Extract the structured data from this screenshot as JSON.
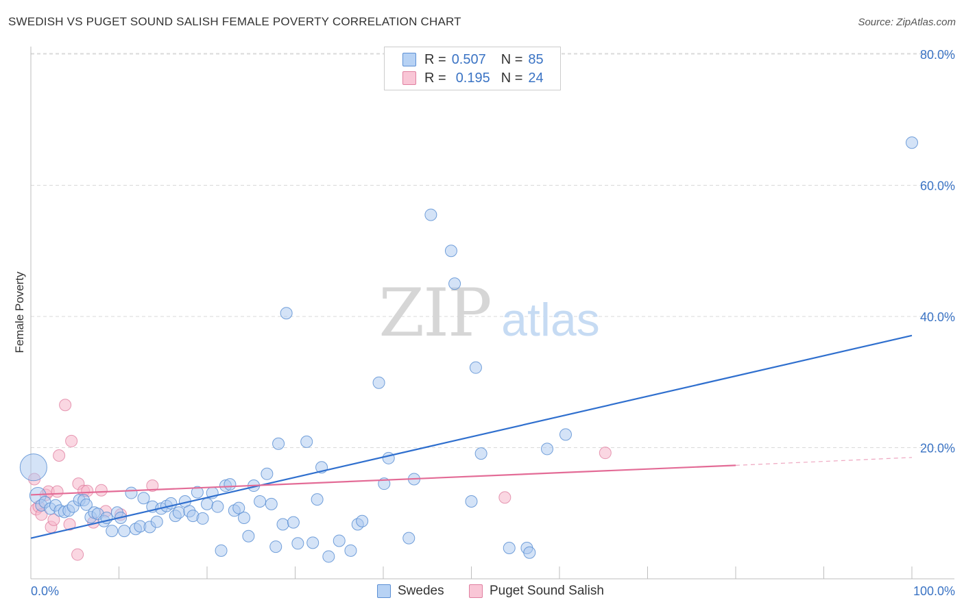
{
  "header": {
    "title": "SWEDISH VS PUGET SOUND SALISH FEMALE POVERTY CORRELATION CHART",
    "source": "Source: ZipAtlas.com"
  },
  "watermark": {
    "zip": "ZIP",
    "atlas": "atlas"
  },
  "legend": {
    "rows": [
      {
        "r_label": "R =",
        "r_value": "0.507",
        "n_label": "N =",
        "n_value": "85"
      },
      {
        "r_label": "R =",
        "r_value": "0.195",
        "n_label": "N =",
        "n_value": "24"
      }
    ]
  },
  "bottom_legend": {
    "series1": "Swedes",
    "series2": "Puget Sound Salish"
  },
  "colors": {
    "blue_fill": "#a9c8f0",
    "blue_stroke": "#5b8fd4",
    "blue_line": "#2f6fce",
    "pink_fill": "#f5b6cb",
    "pink_stroke": "#e07fa0",
    "pink_line": "#e36b96",
    "tick_label": "#3a73c4",
    "grid": "#d9d9d9"
  },
  "chart_data": {
    "type": "scatter",
    "title": "SWEDISH VS PUGET SOUND SALISH FEMALE POVERTY CORRELATION CHART",
    "xlabel": "",
    "ylabel": "Female Poverty",
    "xlim": [
      0,
      100
    ],
    "ylim": [
      0,
      82
    ],
    "x_tick_labels": [
      "0.0%",
      "100.0%"
    ],
    "y_ticks": [
      20,
      40,
      60,
      80
    ],
    "y_tick_labels": [
      "20.0%",
      "40.0%",
      "60.0%",
      "80.0%"
    ],
    "grid": true,
    "legend_position": "top-center",
    "series": [
      {
        "name": "Swedes",
        "r": 0.507,
        "n": 85,
        "trend": {
          "x": [
            0,
            100
          ],
          "y": [
            6.2,
            37.1
          ]
        },
        "points": [
          [
            0.3,
            17.0
          ],
          [
            0.8,
            12.7
          ],
          [
            1.2,
            11.2
          ],
          [
            1.6,
            11.7
          ],
          [
            2.2,
            10.7
          ],
          [
            2.8,
            11.2
          ],
          [
            3.3,
            10.4
          ],
          [
            3.8,
            10.2
          ],
          [
            4.3,
            10.4
          ],
          [
            4.8,
            11.0
          ],
          [
            5.5,
            12.0
          ],
          [
            6.0,
            12.0
          ],
          [
            6.3,
            11.3
          ],
          [
            6.8,
            9.4
          ],
          [
            7.2,
            10.1
          ],
          [
            7.6,
            9.9
          ],
          [
            8.3,
            8.8
          ],
          [
            8.6,
            9.3
          ],
          [
            9.2,
            7.3
          ],
          [
            9.8,
            10.1
          ],
          [
            10.2,
            9.3
          ],
          [
            10.6,
            7.3
          ],
          [
            11.4,
            13.1
          ],
          [
            11.9,
            7.6
          ],
          [
            12.4,
            8.0
          ],
          [
            12.8,
            12.3
          ],
          [
            13.5,
            7.9
          ],
          [
            13.8,
            11.0
          ],
          [
            14.3,
            8.7
          ],
          [
            14.8,
            10.7
          ],
          [
            15.4,
            11.1
          ],
          [
            15.9,
            11.5
          ],
          [
            16.4,
            9.6
          ],
          [
            16.8,
            10.1
          ],
          [
            17.5,
            11.8
          ],
          [
            18.0,
            10.3
          ],
          [
            18.4,
            9.6
          ],
          [
            18.9,
            13.2
          ],
          [
            19.5,
            9.2
          ],
          [
            20.0,
            11.4
          ],
          [
            20.6,
            13.1
          ],
          [
            21.2,
            11.0
          ],
          [
            21.6,
            4.3
          ],
          [
            22.1,
            14.2
          ],
          [
            22.6,
            14.4
          ],
          [
            23.1,
            10.4
          ],
          [
            23.6,
            10.8
          ],
          [
            24.2,
            9.3
          ],
          [
            24.7,
            6.5
          ],
          [
            25.3,
            14.2
          ],
          [
            26.0,
            11.8
          ],
          [
            26.8,
            16.0
          ],
          [
            27.3,
            11.4
          ],
          [
            27.8,
            4.9
          ],
          [
            28.1,
            20.6
          ],
          [
            28.6,
            8.3
          ],
          [
            29.0,
            40.5
          ],
          [
            29.8,
            8.6
          ],
          [
            30.3,
            5.4
          ],
          [
            31.3,
            20.9
          ],
          [
            32.0,
            5.5
          ],
          [
            32.5,
            12.1
          ],
          [
            33.0,
            17.0
          ],
          [
            33.8,
            3.4
          ],
          [
            35.0,
            5.8
          ],
          [
            36.3,
            4.3
          ],
          [
            37.1,
            8.3
          ],
          [
            37.6,
            8.8
          ],
          [
            39.5,
            29.9
          ],
          [
            40.1,
            14.5
          ],
          [
            40.6,
            18.4
          ],
          [
            42.9,
            6.2
          ],
          [
            43.5,
            15.2
          ],
          [
            45.4,
            55.5
          ],
          [
            47.7,
            50.0
          ],
          [
            48.1,
            45.0
          ],
          [
            50.0,
            11.8
          ],
          [
            50.5,
            32.2
          ],
          [
            51.1,
            19.1
          ],
          [
            54.3,
            4.7
          ],
          [
            56.3,
            4.7
          ],
          [
            56.6,
            4.0
          ],
          [
            58.6,
            19.8
          ],
          [
            60.7,
            22.0
          ],
          [
            100.0,
            66.5
          ]
        ],
        "sizes": {
          "0": 2.3,
          "1": 1.4
        }
      },
      {
        "name": "Puget Sound Salish",
        "r": 0.195,
        "n": 24,
        "trend": {
          "x": [
            0,
            80,
            100
          ],
          "y": [
            12.8,
            17.3,
            18.5
          ],
          "dashed_after_x": 80
        },
        "points": [
          [
            0.4,
            15.2
          ],
          [
            0.6,
            10.6
          ],
          [
            0.9,
            11.0
          ],
          [
            1.2,
            9.8
          ],
          [
            1.7,
            12.8
          ],
          [
            2.0,
            13.3
          ],
          [
            2.3,
            7.9
          ],
          [
            2.6,
            9.0
          ],
          [
            3.0,
            13.3
          ],
          [
            3.2,
            18.8
          ],
          [
            3.9,
            26.5
          ],
          [
            4.4,
            8.3
          ],
          [
            4.6,
            21.0
          ],
          [
            5.3,
            3.7
          ],
          [
            5.4,
            14.5
          ],
          [
            6.0,
            13.4
          ],
          [
            6.4,
            13.4
          ],
          [
            7.1,
            8.6
          ],
          [
            8.0,
            13.5
          ],
          [
            8.5,
            10.3
          ],
          [
            10.2,
            9.8
          ],
          [
            13.8,
            14.2
          ],
          [
            53.8,
            12.4
          ],
          [
            65.2,
            19.2
          ]
        ]
      }
    ]
  }
}
